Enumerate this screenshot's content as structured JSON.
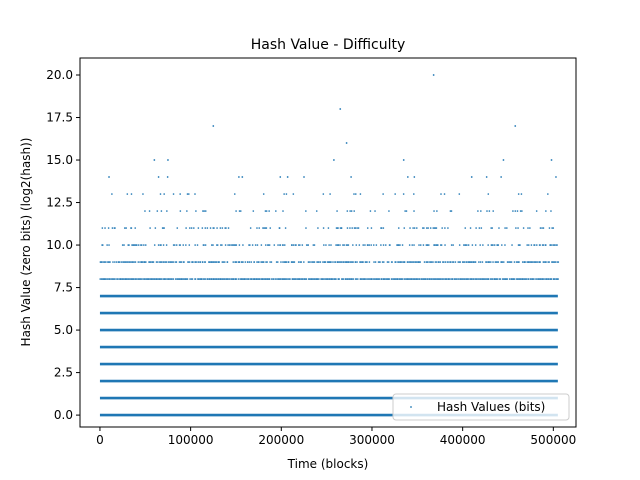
{
  "chart_data": {
    "type": "scatter",
    "title": "Hash Value - Difficulty",
    "xlabel": "Time (blocks)",
    "ylabel": "Hash Value (zero bits) (log2(hash))",
    "xlim": [
      -22000,
      525000
    ],
    "ylim": [
      -0.7,
      21.0
    ],
    "x_ticks": [
      0,
      100000,
      200000,
      300000,
      400000,
      500000
    ],
    "x_tick_labels": [
      "0",
      "100000",
      "200000",
      "300000",
      "400000",
      "500000"
    ],
    "y_ticks": [
      0.0,
      2.5,
      5.0,
      7.5,
      10.0,
      12.5,
      15.0,
      17.5,
      20.0
    ],
    "y_tick_labels": [
      "0.0",
      "2.5",
      "5.0",
      "7.5",
      "10.0",
      "12.5",
      "15.0",
      "17.5",
      "20.0"
    ],
    "x_range": [
      0,
      505000
    ],
    "grid": false,
    "legend_position": "lower-right",
    "series": [
      {
        "name": "Hash Values (bits)",
        "color": "#1f77b4",
        "dense_levels": [
          0,
          1,
          2,
          3,
          4,
          5,
          6,
          7
        ],
        "sparse_levels": [
          {
            "value": 8,
            "density": 0.85
          },
          {
            "value": 9,
            "density": 0.6
          },
          {
            "value": 10,
            "density": 0.35
          },
          {
            "value": 11,
            "density": 0.18
          },
          {
            "value": 12,
            "density": 0.09
          },
          {
            "value": 13,
            "density": 0.045
          },
          {
            "value": 14,
            "density": 0.02
          }
        ],
        "rare_points": [
          {
            "x": 60000,
            "y": 15
          },
          {
            "x": 75000,
            "y": 15
          },
          {
            "x": 125000,
            "y": 17
          },
          {
            "x": 258000,
            "y": 15
          },
          {
            "x": 265000,
            "y": 18
          },
          {
            "x": 272000,
            "y": 16
          },
          {
            "x": 335000,
            "y": 15
          },
          {
            "x": 368000,
            "y": 20
          },
          {
            "x": 445000,
            "y": 15
          },
          {
            "x": 458000,
            "y": 17
          },
          {
            "x": 498000,
            "y": 15
          },
          {
            "x": 10000,
            "y": 14
          },
          {
            "x": 157000,
            "y": 14
          },
          {
            "x": 207000,
            "y": 14
          },
          {
            "x": 410000,
            "y": 14
          }
        ]
      }
    ]
  }
}
